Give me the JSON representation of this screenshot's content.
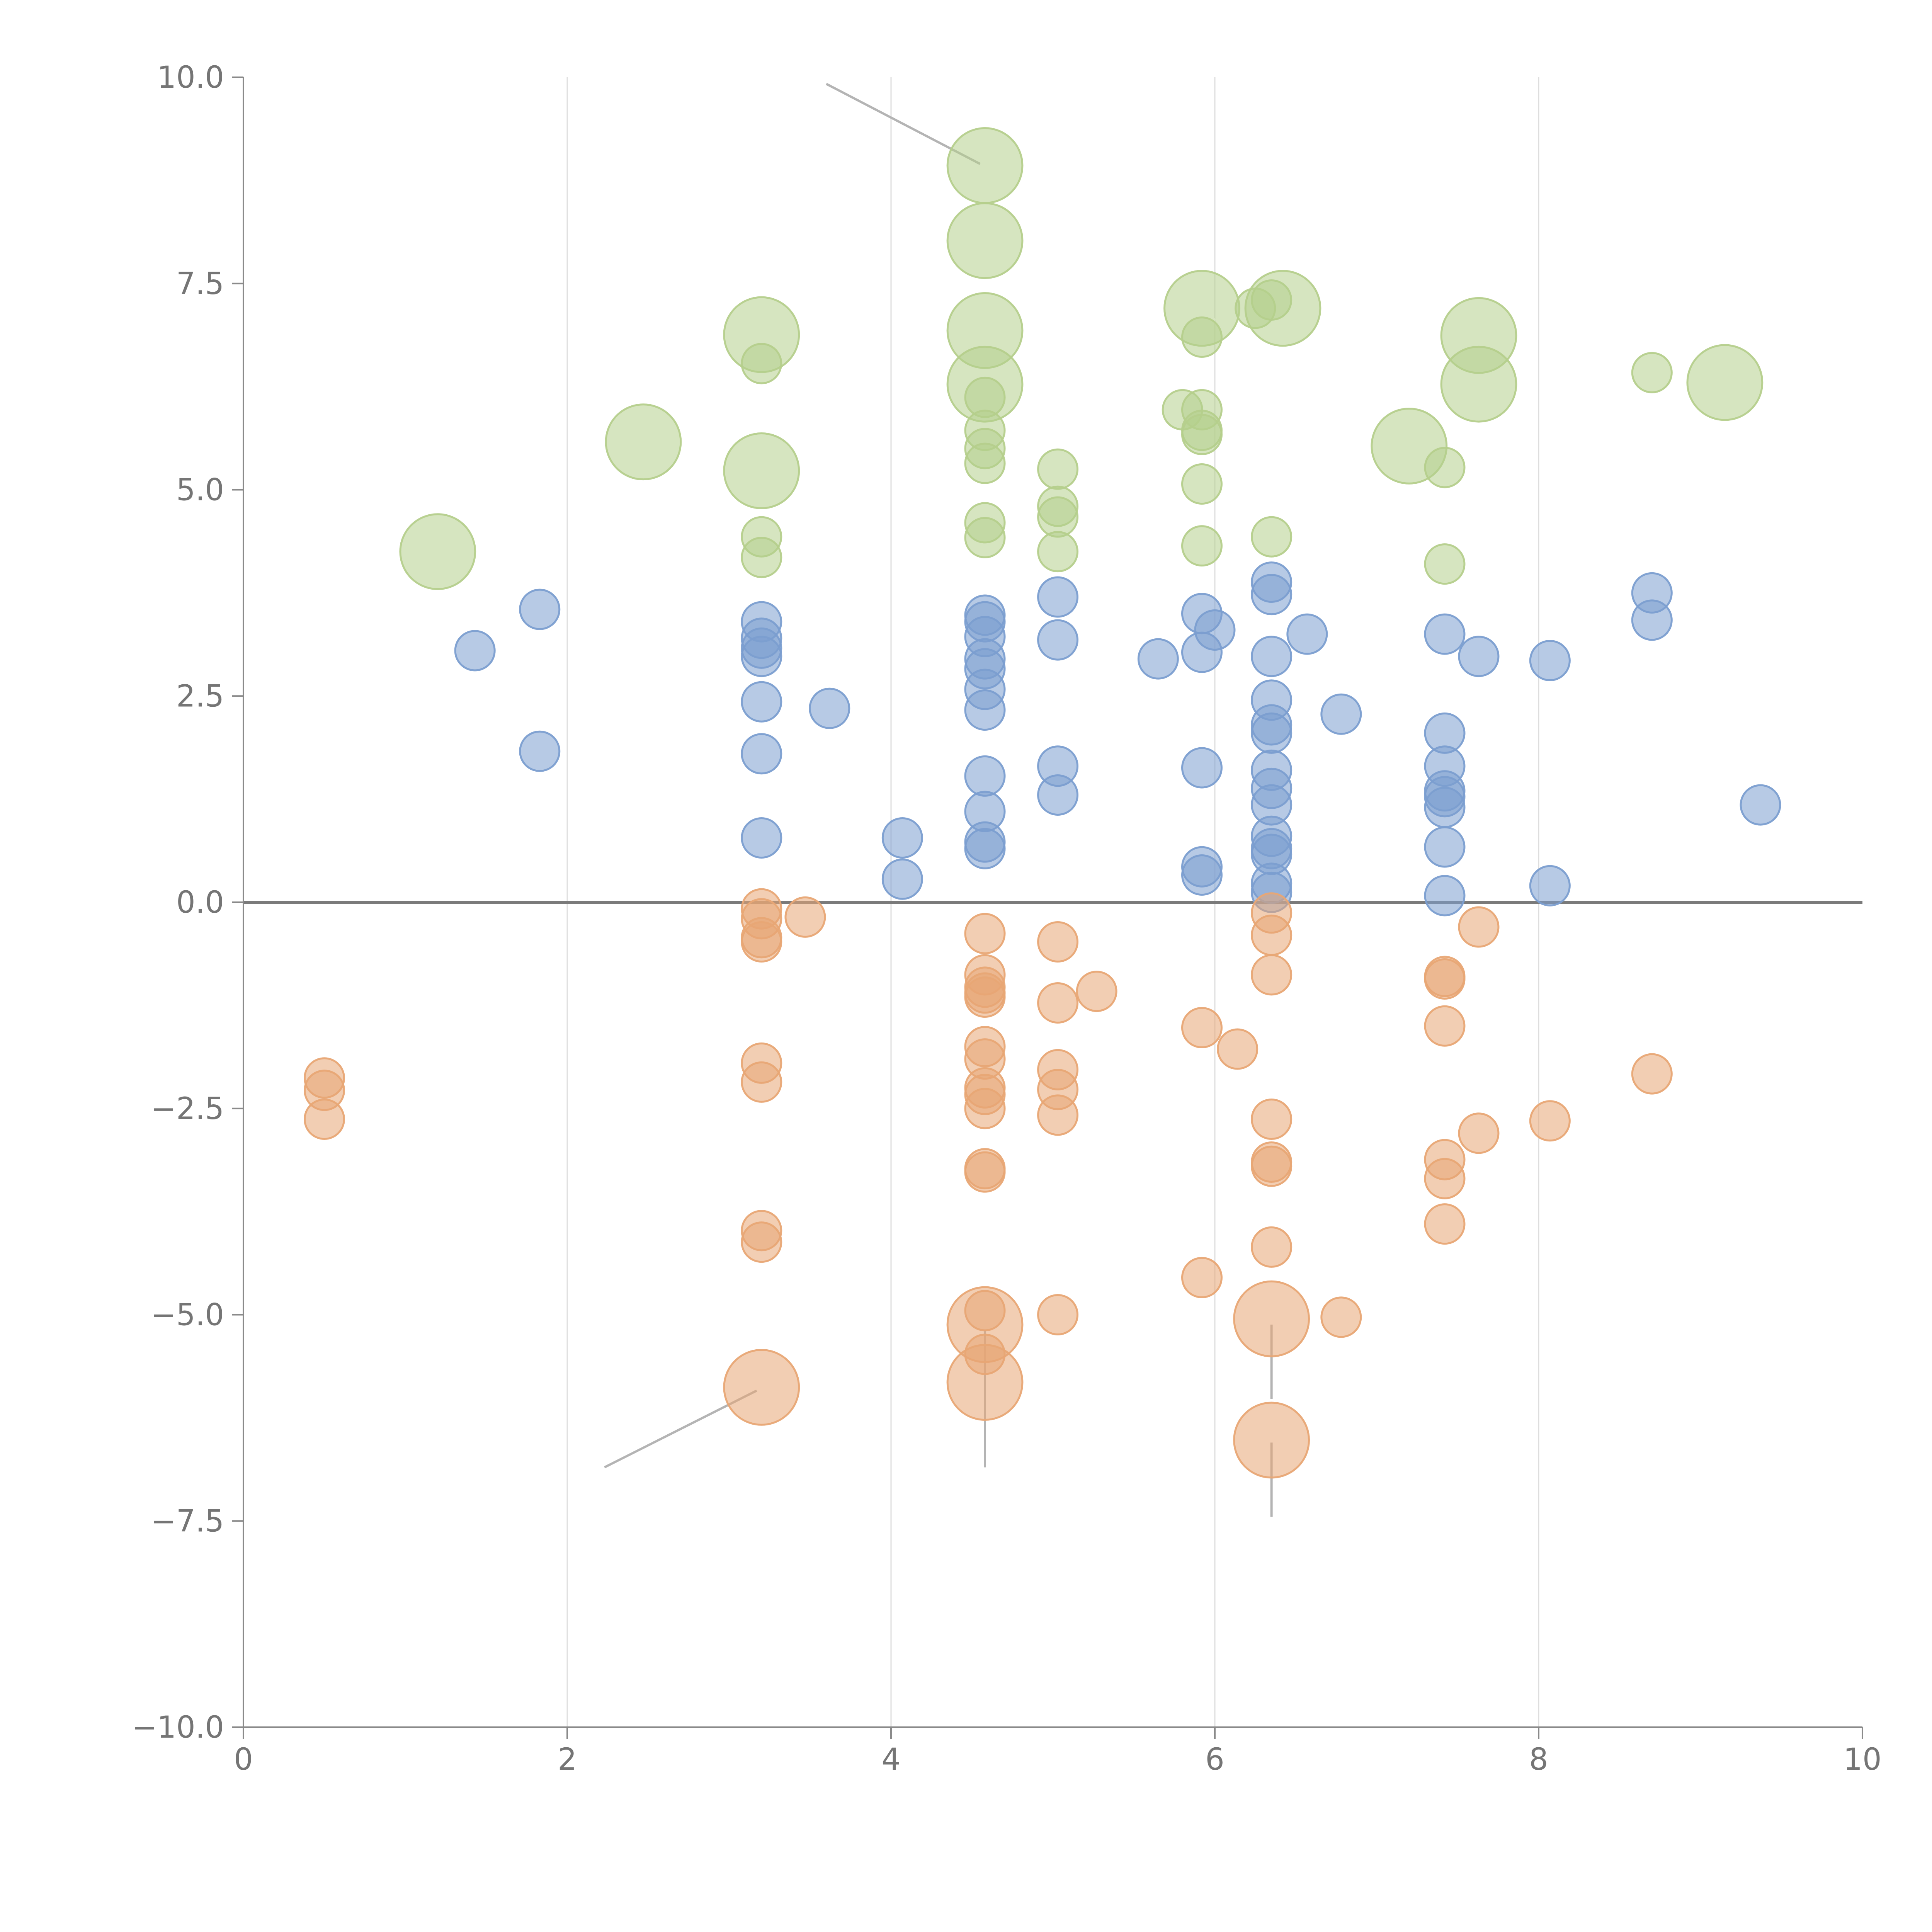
{
  "chart_data": {
    "type": "scatter",
    "title": "",
    "xlabel": "",
    "ylabel": "",
    "xlim": [
      0,
      10
    ],
    "ylim": [
      -10,
      10
    ],
    "x_ticks": [
      0,
      2,
      4,
      6,
      8,
      10
    ],
    "y_ticks": [
      -10,
      -7.5,
      -5,
      -2.5,
      0,
      2.5,
      5,
      7.5,
      10
    ],
    "x_tick_labels": [
      "0",
      "2",
      "4",
      "6",
      "8",
      "10"
    ],
    "y_tick_labels": [
      "−10.0",
      "−7.5",
      "−5.0",
      "−2.5",
      "0.0",
      "2.5",
      "5.0",
      "7.5",
      "10.0"
    ],
    "vertical_gridlines_at": [
      2,
      4,
      6,
      8
    ],
    "reference_line_y": 0,
    "size_unit": "relative marker size (1 = smallest)",
    "series": [
      {
        "name": "blue",
        "color": "#7b9ed0",
        "points": [
          [
            1.43,
            3.05,
            1
          ],
          [
            1.83,
            3.55,
            1
          ],
          [
            1.83,
            1.83,
            1
          ],
          [
            3.2,
            3.4,
            1
          ],
          [
            3.2,
            3.2,
            1
          ],
          [
            3.2,
            3.08,
            1
          ],
          [
            3.2,
            2.98,
            1
          ],
          [
            3.2,
            2.43,
            1
          ],
          [
            3.2,
            1.8,
            1
          ],
          [
            3.2,
            0.78,
            1
          ],
          [
            3.62,
            2.35,
            1
          ],
          [
            4.07,
            0.78,
            1
          ],
          [
            4.07,
            0.28,
            1
          ],
          [
            4.58,
            3.48,
            1
          ],
          [
            4.58,
            3.4,
            1
          ],
          [
            4.58,
            3.22,
            1
          ],
          [
            4.58,
            2.95,
            1
          ],
          [
            4.58,
            2.83,
            1
          ],
          [
            4.58,
            2.58,
            1
          ],
          [
            4.58,
            2.33,
            1
          ],
          [
            4.58,
            1.53,
            1
          ],
          [
            4.58,
            1.1,
            1
          ],
          [
            4.58,
            0.73,
            1
          ],
          [
            4.58,
            0.65,
            1
          ],
          [
            5.03,
            3.7,
            1
          ],
          [
            5.03,
            3.18,
            1
          ],
          [
            5.03,
            1.65,
            1
          ],
          [
            5.03,
            1.3,
            1
          ],
          [
            5.65,
            2.95,
            1
          ],
          [
            5.92,
            3.5,
            1
          ],
          [
            5.92,
            3.03,
            1
          ],
          [
            5.92,
            1.63,
            1
          ],
          [
            5.92,
            0.43,
            1
          ],
          [
            5.92,
            0.33,
            1
          ],
          [
            6.0,
            3.3,
            1
          ],
          [
            6.35,
            3.88,
            1
          ],
          [
            6.35,
            3.73,
            1
          ],
          [
            6.35,
            2.98,
            1
          ],
          [
            6.35,
            2.45,
            1
          ],
          [
            6.35,
            2.15,
            1
          ],
          [
            6.35,
            2.05,
            1
          ],
          [
            6.35,
            1.6,
            1
          ],
          [
            6.35,
            1.38,
            1
          ],
          [
            6.35,
            1.18,
            1
          ],
          [
            6.35,
            0.8,
            1
          ],
          [
            6.35,
            0.65,
            1
          ],
          [
            6.35,
            0.58,
            1
          ],
          [
            6.35,
            0.23,
            1
          ],
          [
            6.35,
            0.12,
            1
          ],
          [
            6.57,
            3.25,
            1
          ],
          [
            6.78,
            2.28,
            1
          ],
          [
            7.42,
            3.25,
            1
          ],
          [
            7.42,
            2.05,
            1
          ],
          [
            7.42,
            1.65,
            1
          ],
          [
            7.42,
            1.35,
            1
          ],
          [
            7.42,
            1.28,
            1
          ],
          [
            7.42,
            1.15,
            1
          ],
          [
            7.42,
            0.67,
            1
          ],
          [
            7.42,
            0.08,
            1
          ],
          [
            7.63,
            2.98,
            1
          ],
          [
            8.07,
            2.93,
            1
          ],
          [
            8.07,
            0.2,
            1
          ],
          [
            8.7,
            3.75,
            1
          ],
          [
            8.7,
            3.42,
            1
          ],
          [
            9.37,
            1.18,
            1
          ]
        ]
      },
      {
        "name": "orange",
        "color": "#e8a675",
        "points": [
          [
            0.5,
            -2.13,
            1
          ],
          [
            0.5,
            -2.28,
            1
          ],
          [
            0.5,
            -2.63,
            1
          ],
          [
            3.2,
            -0.08,
            1
          ],
          [
            3.2,
            -0.2,
            1
          ],
          [
            3.2,
            -0.43,
            1
          ],
          [
            3.2,
            -0.48,
            1
          ],
          [
            3.2,
            -1.95,
            1
          ],
          [
            3.2,
            -2.18,
            1
          ],
          [
            3.2,
            -3.98,
            1
          ],
          [
            3.2,
            -4.12,
            1
          ],
          [
            3.2,
            -5.88,
            2
          ],
          [
            3.47,
            -0.18,
            1
          ],
          [
            4.58,
            -0.38,
            1
          ],
          [
            4.58,
            -0.88,
            1
          ],
          [
            4.58,
            -1.03,
            1
          ],
          [
            4.58,
            -1.1,
            1
          ],
          [
            4.58,
            -1.15,
            1
          ],
          [
            4.58,
            -1.75,
            1
          ],
          [
            4.58,
            -1.9,
            1
          ],
          [
            4.58,
            -2.25,
            1
          ],
          [
            4.58,
            -2.33,
            1
          ],
          [
            4.58,
            -2.5,
            1
          ],
          [
            4.58,
            -3.23,
            1
          ],
          [
            4.58,
            -3.27,
            1
          ],
          [
            4.58,
            -4.95,
            1
          ],
          [
            4.58,
            -5.12,
            2
          ],
          [
            4.58,
            -5.48,
            1
          ],
          [
            4.58,
            -5.82,
            2
          ],
          [
            5.03,
            -0.48,
            1
          ],
          [
            5.03,
            -1.22,
            1
          ],
          [
            5.03,
            -2.03,
            1
          ],
          [
            5.03,
            -2.27,
            1
          ],
          [
            5.03,
            -2.58,
            1
          ],
          [
            5.03,
            -5.0,
            1
          ],
          [
            5.27,
            -1.08,
            1
          ],
          [
            5.92,
            -1.52,
            1
          ],
          [
            5.92,
            -4.55,
            1
          ],
          [
            6.14,
            -1.78,
            1
          ],
          [
            6.35,
            -0.13,
            1
          ],
          [
            6.35,
            -0.4,
            1
          ],
          [
            6.35,
            -0.88,
            1
          ],
          [
            6.35,
            -2.63,
            1
          ],
          [
            6.35,
            -3.15,
            1
          ],
          [
            6.35,
            -3.2,
            1
          ],
          [
            6.35,
            -4.18,
            1
          ],
          [
            6.35,
            -5.05,
            2
          ],
          [
            6.35,
            -6.52,
            2
          ],
          [
            6.78,
            -5.03,
            1
          ],
          [
            7.42,
            -0.9,
            1
          ],
          [
            7.42,
            -0.93,
            1
          ],
          [
            7.42,
            -1.5,
            1
          ],
          [
            7.42,
            -3.12,
            1
          ],
          [
            7.42,
            -3.35,
            1
          ],
          [
            7.42,
            -3.9,
            1
          ],
          [
            7.63,
            -0.3,
            1
          ],
          [
            7.63,
            -2.8,
            1
          ],
          [
            8.07,
            -2.65,
            1
          ],
          [
            8.7,
            -2.08,
            1
          ]
        ]
      },
      {
        "name": "green",
        "color": "#b5cf8c",
        "points": [
          [
            1.2,
            4.25,
            2
          ],
          [
            2.47,
            5.58,
            2
          ],
          [
            3.2,
            6.88,
            2
          ],
          [
            3.2,
            6.53,
            1
          ],
          [
            3.2,
            5.23,
            2
          ],
          [
            3.2,
            4.43,
            1
          ],
          [
            3.2,
            4.18,
            1
          ],
          [
            4.58,
            8.93,
            2
          ],
          [
            4.58,
            8.02,
            2
          ],
          [
            4.58,
            6.93,
            2
          ],
          [
            4.58,
            6.28,
            2
          ],
          [
            4.58,
            6.12,
            1
          ],
          [
            4.58,
            5.72,
            1
          ],
          [
            4.58,
            5.5,
            1
          ],
          [
            4.58,
            5.32,
            1
          ],
          [
            4.58,
            4.6,
            1
          ],
          [
            4.58,
            4.42,
            1
          ],
          [
            5.03,
            5.25,
            1
          ],
          [
            5.03,
            4.8,
            1
          ],
          [
            5.03,
            4.67,
            1
          ],
          [
            5.03,
            4.25,
            1
          ],
          [
            5.8,
            5.97,
            1
          ],
          [
            5.92,
            7.2,
            2
          ],
          [
            5.92,
            6.85,
            1
          ],
          [
            5.92,
            5.97,
            1
          ],
          [
            5.92,
            5.72,
            1
          ],
          [
            5.92,
            5.67,
            1
          ],
          [
            5.92,
            5.07,
            1
          ],
          [
            5.92,
            4.32,
            1
          ],
          [
            6.25,
            7.2,
            1
          ],
          [
            6.35,
            7.3,
            1
          ],
          [
            6.42,
            7.2,
            2
          ],
          [
            6.35,
            4.43,
            1
          ],
          [
            7.2,
            5.53,
            2
          ],
          [
            7.42,
            5.27,
            1
          ],
          [
            7.42,
            4.1,
            1
          ],
          [
            7.63,
            6.87,
            2
          ],
          [
            7.63,
            6.28,
            2
          ],
          [
            8.7,
            6.42,
            1
          ],
          [
            9.15,
            6.3,
            2
          ]
        ]
      }
    ],
    "connector_lines": [
      {
        "color": "#b4b4b4",
        "segments": [
          [
            3.6,
            9.92,
            4.55,
            8.95
          ],
          [
            2.23,
            -6.85,
            3.17,
            -5.92
          ],
          [
            4.58,
            -5.18,
            4.58,
            -6.85
          ],
          [
            6.35,
            -5.12,
            6.35,
            -6.02
          ],
          [
            6.35,
            -6.55,
            6.35,
            -7.45
          ]
        ]
      },
      {
        "color": "#ffffff",
        "segments": [
          [
            4.6,
            8.1,
            4.75,
            8.25
          ],
          [
            3.27,
            6.95,
            3.4,
            7.15
          ],
          [
            4.62,
            6.95,
            4.72,
            6.85
          ],
          [
            4.63,
            6.25,
            4.65,
            6.05
          ],
          [
            2.4,
            5.8,
            2.47,
            5.65
          ],
          [
            3.27,
            5.23,
            3.5,
            5.2
          ],
          [
            5.95,
            7.2,
            6.0,
            7.05
          ],
          [
            6.45,
            7.25,
            6.58,
            7.45
          ],
          [
            7.65,
            6.95,
            7.82,
            7.05
          ],
          [
            7.2,
            5.55,
            7.18,
            5.15
          ],
          [
            9.15,
            6.25,
            9.13,
            6.6
          ],
          [
            1.25,
            4.3,
            1.35,
            4.2
          ],
          [
            5.03,
            4.6,
            5.1,
            4.15
          ],
          [
            5.07,
            3.2,
            5.1,
            3.5
          ]
        ]
      }
    ]
  }
}
